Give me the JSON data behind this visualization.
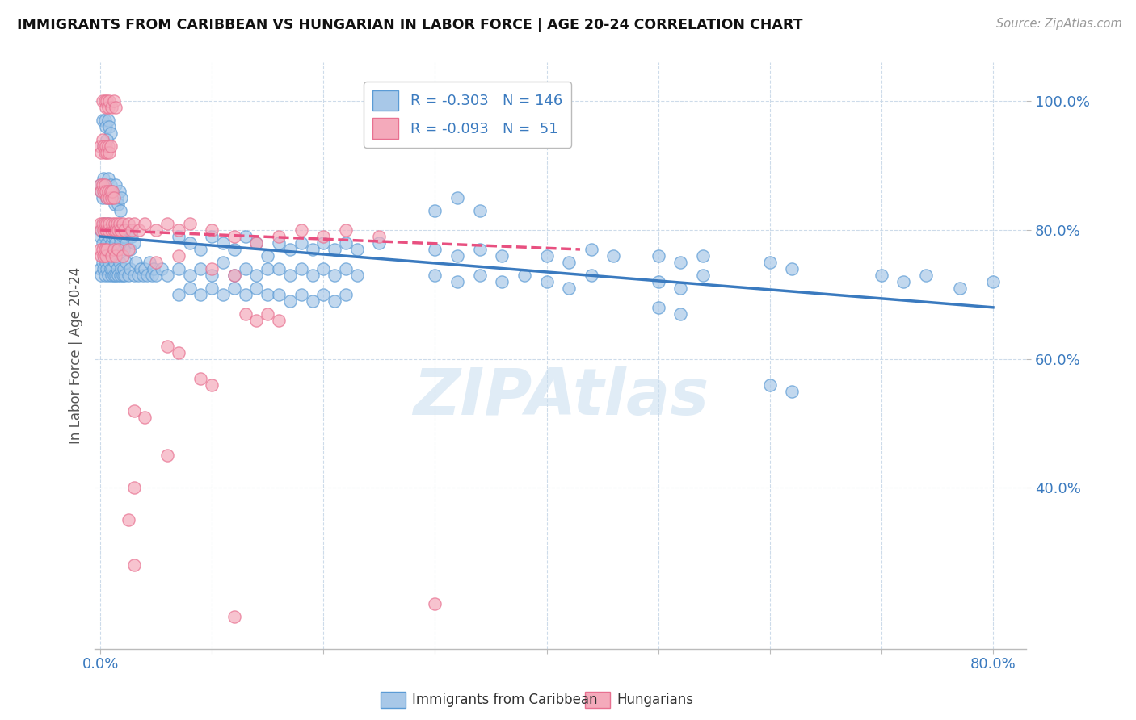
{
  "title": "IMMIGRANTS FROM CARIBBEAN VS HUNGARIAN IN LABOR FORCE | AGE 20-24 CORRELATION CHART",
  "source": "Source: ZipAtlas.com",
  "ylabel": "In Labor Force | Age 20-24",
  "x_tick_positions": [
    0.0,
    0.1,
    0.2,
    0.3,
    0.4,
    0.5,
    0.6,
    0.7,
    0.8
  ],
  "x_tick_labels": [
    "0.0%",
    "",
    "",
    "",
    "",
    "",
    "",
    "",
    "80.0%"
  ],
  "y_tick_positions": [
    0.4,
    0.6,
    0.8,
    1.0
  ],
  "y_tick_labels": [
    "40.0%",
    "60.0%",
    "80.0%",
    "100.0%"
  ],
  "xlim": [
    -0.005,
    0.83
  ],
  "ylim": [
    0.15,
    1.06
  ],
  "legend_R1": "-0.303",
  "legend_N1": "146",
  "legend_R2": "-0.093",
  "legend_N2": " 51",
  "blue_color": "#A8C8E8",
  "pink_color": "#F4AABB",
  "blue_edge_color": "#5B9BD5",
  "pink_edge_color": "#E87090",
  "blue_line_color": "#3A7ABF",
  "pink_line_color": "#E85080",
  "watermark": "ZipAtlas",
  "blue_trend": [
    0.0,
    0.79,
    0.8,
    0.68
  ],
  "pink_trend": [
    0.0,
    0.8,
    0.43,
    0.77
  ],
  "blue_scatter": [
    [
      0.002,
      0.97
    ],
    [
      0.004,
      0.97
    ],
    [
      0.005,
      0.96
    ],
    [
      0.007,
      0.97
    ],
    [
      0.008,
      0.96
    ],
    [
      0.009,
      0.95
    ],
    [
      0.003,
      0.93
    ],
    [
      0.006,
      0.94
    ],
    [
      0.0,
      0.87
    ],
    [
      0.001,
      0.86
    ],
    [
      0.002,
      0.85
    ],
    [
      0.003,
      0.88
    ],
    [
      0.004,
      0.87
    ],
    [
      0.005,
      0.86
    ],
    [
      0.006,
      0.85
    ],
    [
      0.007,
      0.88
    ],
    [
      0.008,
      0.86
    ],
    [
      0.009,
      0.87
    ],
    [
      0.01,
      0.85
    ],
    [
      0.011,
      0.86
    ],
    [
      0.012,
      0.85
    ],
    [
      0.013,
      0.84
    ],
    [
      0.014,
      0.87
    ],
    [
      0.015,
      0.85
    ],
    [
      0.016,
      0.84
    ],
    [
      0.017,
      0.86
    ],
    [
      0.018,
      0.83
    ],
    [
      0.019,
      0.85
    ],
    [
      0.0,
      0.79
    ],
    [
      0.001,
      0.8
    ],
    [
      0.002,
      0.78
    ],
    [
      0.003,
      0.81
    ],
    [
      0.004,
      0.79
    ],
    [
      0.005,
      0.8
    ],
    [
      0.006,
      0.78
    ],
    [
      0.007,
      0.81
    ],
    [
      0.008,
      0.79
    ],
    [
      0.009,
      0.8
    ],
    [
      0.01,
      0.78
    ],
    [
      0.011,
      0.79
    ],
    [
      0.012,
      0.77
    ],
    [
      0.013,
      0.79
    ],
    [
      0.014,
      0.78
    ],
    [
      0.015,
      0.8
    ],
    [
      0.016,
      0.77
    ],
    [
      0.017,
      0.79
    ],
    [
      0.018,
      0.78
    ],
    [
      0.019,
      0.8
    ],
    [
      0.02,
      0.79
    ],
    [
      0.021,
      0.77
    ],
    [
      0.022,
      0.79
    ],
    [
      0.023,
      0.78
    ],
    [
      0.025,
      0.8
    ],
    [
      0.027,
      0.77
    ],
    [
      0.028,
      0.79
    ],
    [
      0.03,
      0.78
    ],
    [
      0.0,
      0.74
    ],
    [
      0.001,
      0.73
    ],
    [
      0.002,
      0.75
    ],
    [
      0.003,
      0.74
    ],
    [
      0.004,
      0.73
    ],
    [
      0.005,
      0.75
    ],
    [
      0.006,
      0.74
    ],
    [
      0.007,
      0.73
    ],
    [
      0.008,
      0.75
    ],
    [
      0.009,
      0.74
    ],
    [
      0.01,
      0.73
    ],
    [
      0.011,
      0.74
    ],
    [
      0.012,
      0.73
    ],
    [
      0.013,
      0.75
    ],
    [
      0.014,
      0.73
    ],
    [
      0.015,
      0.74
    ],
    [
      0.016,
      0.73
    ],
    [
      0.017,
      0.75
    ],
    [
      0.018,
      0.73
    ],
    [
      0.019,
      0.74
    ],
    [
      0.02,
      0.73
    ],
    [
      0.021,
      0.74
    ],
    [
      0.022,
      0.73
    ],
    [
      0.023,
      0.75
    ],
    [
      0.025,
      0.73
    ],
    [
      0.027,
      0.74
    ],
    [
      0.03,
      0.73
    ],
    [
      0.032,
      0.75
    ],
    [
      0.034,
      0.73
    ],
    [
      0.036,
      0.74
    ],
    [
      0.038,
      0.73
    ],
    [
      0.04,
      0.74
    ],
    [
      0.042,
      0.73
    ],
    [
      0.044,
      0.75
    ],
    [
      0.046,
      0.73
    ],
    [
      0.048,
      0.74
    ],
    [
      0.05,
      0.73
    ],
    [
      0.055,
      0.74
    ],
    [
      0.06,
      0.73
    ],
    [
      0.07,
      0.79
    ],
    [
      0.08,
      0.78
    ],
    [
      0.09,
      0.77
    ],
    [
      0.1,
      0.79
    ],
    [
      0.11,
      0.78
    ],
    [
      0.12,
      0.77
    ],
    [
      0.13,
      0.79
    ],
    [
      0.14,
      0.78
    ],
    [
      0.15,
      0.76
    ],
    [
      0.07,
      0.74
    ],
    [
      0.08,
      0.73
    ],
    [
      0.09,
      0.74
    ],
    [
      0.1,
      0.73
    ],
    [
      0.11,
      0.75
    ],
    [
      0.12,
      0.73
    ],
    [
      0.13,
      0.74
    ],
    [
      0.14,
      0.73
    ],
    [
      0.15,
      0.74
    ],
    [
      0.07,
      0.7
    ],
    [
      0.08,
      0.71
    ],
    [
      0.09,
      0.7
    ],
    [
      0.1,
      0.71
    ],
    [
      0.11,
      0.7
    ],
    [
      0.12,
      0.71
    ],
    [
      0.13,
      0.7
    ],
    [
      0.14,
      0.71
    ],
    [
      0.15,
      0.7
    ],
    [
      0.16,
      0.78
    ],
    [
      0.17,
      0.77
    ],
    [
      0.18,
      0.78
    ],
    [
      0.19,
      0.77
    ],
    [
      0.2,
      0.78
    ],
    [
      0.21,
      0.77
    ],
    [
      0.22,
      0.78
    ],
    [
      0.23,
      0.77
    ],
    [
      0.25,
      0.78
    ],
    [
      0.16,
      0.74
    ],
    [
      0.17,
      0.73
    ],
    [
      0.18,
      0.74
    ],
    [
      0.19,
      0.73
    ],
    [
      0.2,
      0.74
    ],
    [
      0.21,
      0.73
    ],
    [
      0.22,
      0.74
    ],
    [
      0.23,
      0.73
    ],
    [
      0.16,
      0.7
    ],
    [
      0.17,
      0.69
    ],
    [
      0.18,
      0.7
    ],
    [
      0.19,
      0.69
    ],
    [
      0.2,
      0.7
    ],
    [
      0.21,
      0.69
    ],
    [
      0.22,
      0.7
    ],
    [
      0.3,
      0.83
    ],
    [
      0.32,
      0.85
    ],
    [
      0.34,
      0.83
    ],
    [
      0.3,
      0.77
    ],
    [
      0.32,
      0.76
    ],
    [
      0.34,
      0.77
    ],
    [
      0.36,
      0.76
    ],
    [
      0.3,
      0.73
    ],
    [
      0.32,
      0.72
    ],
    [
      0.34,
      0.73
    ],
    [
      0.36,
      0.72
    ],
    [
      0.38,
      0.73
    ],
    [
      0.4,
      0.76
    ],
    [
      0.42,
      0.75
    ],
    [
      0.44,
      0.77
    ],
    [
      0.46,
      0.76
    ],
    [
      0.4,
      0.72
    ],
    [
      0.42,
      0.71
    ],
    [
      0.44,
      0.73
    ],
    [
      0.5,
      0.76
    ],
    [
      0.52,
      0.75
    ],
    [
      0.54,
      0.76
    ],
    [
      0.5,
      0.72
    ],
    [
      0.52,
      0.71
    ],
    [
      0.54,
      0.73
    ],
    [
      0.5,
      0.68
    ],
    [
      0.52,
      0.67
    ],
    [
      0.6,
      0.75
    ],
    [
      0.62,
      0.74
    ],
    [
      0.6,
      0.56
    ],
    [
      0.62,
      0.55
    ],
    [
      0.7,
      0.73
    ],
    [
      0.72,
      0.72
    ],
    [
      0.74,
      0.73
    ],
    [
      0.77,
      0.71
    ],
    [
      0.8,
      0.72
    ]
  ],
  "pink_scatter": [
    [
      0.002,
      1.0
    ],
    [
      0.004,
      1.0
    ],
    [
      0.005,
      0.99
    ],
    [
      0.006,
      1.0
    ],
    [
      0.007,
      0.99
    ],
    [
      0.008,
      1.0
    ],
    [
      0.01,
      0.99
    ],
    [
      0.012,
      1.0
    ],
    [
      0.014,
      0.99
    ],
    [
      0.0,
      0.93
    ],
    [
      0.001,
      0.92
    ],
    [
      0.002,
      0.94
    ],
    [
      0.003,
      0.93
    ],
    [
      0.004,
      0.92
    ],
    [
      0.005,
      0.93
    ],
    [
      0.006,
      0.92
    ],
    [
      0.007,
      0.93
    ],
    [
      0.008,
      0.92
    ],
    [
      0.009,
      0.93
    ],
    [
      0.0,
      0.87
    ],
    [
      0.001,
      0.86
    ],
    [
      0.002,
      0.87
    ],
    [
      0.003,
      0.86
    ],
    [
      0.004,
      0.87
    ],
    [
      0.005,
      0.86
    ],
    [
      0.006,
      0.85
    ],
    [
      0.007,
      0.86
    ],
    [
      0.008,
      0.85
    ],
    [
      0.009,
      0.86
    ],
    [
      0.01,
      0.85
    ],
    [
      0.011,
      0.86
    ],
    [
      0.012,
      0.85
    ],
    [
      0.0,
      0.81
    ],
    [
      0.001,
      0.8
    ],
    [
      0.002,
      0.81
    ],
    [
      0.003,
      0.8
    ],
    [
      0.004,
      0.81
    ],
    [
      0.005,
      0.8
    ],
    [
      0.006,
      0.81
    ],
    [
      0.007,
      0.8
    ],
    [
      0.008,
      0.81
    ],
    [
      0.01,
      0.8
    ],
    [
      0.011,
      0.81
    ],
    [
      0.012,
      0.8
    ],
    [
      0.013,
      0.81
    ],
    [
      0.014,
      0.8
    ],
    [
      0.015,
      0.81
    ],
    [
      0.016,
      0.8
    ],
    [
      0.017,
      0.81
    ],
    [
      0.018,
      0.8
    ],
    [
      0.02,
      0.81
    ],
    [
      0.022,
      0.8
    ],
    [
      0.025,
      0.81
    ],
    [
      0.028,
      0.8
    ],
    [
      0.03,
      0.81
    ],
    [
      0.035,
      0.8
    ],
    [
      0.04,
      0.81
    ],
    [
      0.05,
      0.8
    ],
    [
      0.06,
      0.81
    ],
    [
      0.07,
      0.8
    ],
    [
      0.08,
      0.81
    ],
    [
      0.0,
      0.77
    ],
    [
      0.001,
      0.76
    ],
    [
      0.002,
      0.77
    ],
    [
      0.003,
      0.76
    ],
    [
      0.004,
      0.77
    ],
    [
      0.005,
      0.76
    ],
    [
      0.006,
      0.77
    ],
    [
      0.01,
      0.76
    ],
    [
      0.012,
      0.77
    ],
    [
      0.014,
      0.76
    ],
    [
      0.016,
      0.77
    ],
    [
      0.02,
      0.76
    ],
    [
      0.025,
      0.77
    ],
    [
      0.05,
      0.75
    ],
    [
      0.07,
      0.76
    ],
    [
      0.1,
      0.8
    ],
    [
      0.12,
      0.79
    ],
    [
      0.14,
      0.78
    ],
    [
      0.16,
      0.79
    ],
    [
      0.18,
      0.8
    ],
    [
      0.2,
      0.79
    ],
    [
      0.22,
      0.8
    ],
    [
      0.25,
      0.79
    ],
    [
      0.1,
      0.74
    ],
    [
      0.12,
      0.73
    ],
    [
      0.13,
      0.67
    ],
    [
      0.14,
      0.66
    ],
    [
      0.15,
      0.67
    ],
    [
      0.16,
      0.66
    ],
    [
      0.09,
      0.57
    ],
    [
      0.1,
      0.56
    ],
    [
      0.06,
      0.62
    ],
    [
      0.07,
      0.61
    ],
    [
      0.03,
      0.52
    ],
    [
      0.04,
      0.51
    ],
    [
      0.06,
      0.45
    ],
    [
      0.03,
      0.4
    ],
    [
      0.025,
      0.35
    ],
    [
      0.03,
      0.28
    ],
    [
      0.12,
      0.2
    ],
    [
      0.3,
      0.22
    ]
  ]
}
